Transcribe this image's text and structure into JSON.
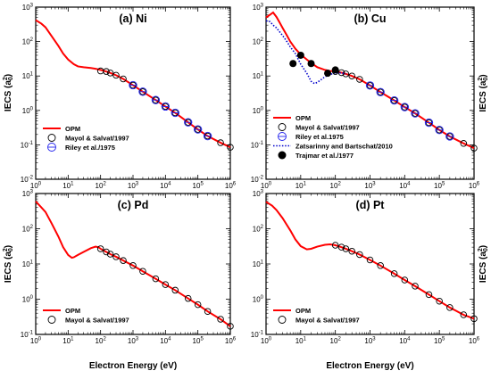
{
  "figure": {
    "xlabel": "Electron Energy (eV)",
    "ylabel_main": "IECS (a",
    "ylabel_sub": "0",
    "ylabel_sup": "2",
    "ylabel_close": ")"
  },
  "colors": {
    "opm": "#ff0000",
    "riley": "#2222ee",
    "zatsarinny": "#0000cc",
    "mayol": "#000000",
    "trajmar": "#000000"
  },
  "chart_data": [
    {
      "type": "line",
      "title": "(a) Ni",
      "xscale": "log",
      "yscale": "log",
      "xlim": [
        1,
        1000000
      ],
      "ylim": [
        0.01,
        1000
      ],
      "xlabel": "",
      "ylabel": "IECS (a02)",
      "legend_position": "bottom-left",
      "series": [
        {
          "name": "OPM",
          "style": "line",
          "color": "#ff0000",
          "x": [
            1,
            1.5,
            2,
            3,
            5,
            7,
            10,
            15,
            20,
            30,
            50,
            70,
            100,
            150,
            200,
            300,
            500,
            1000,
            2000,
            5000,
            10000,
            20000,
            50000,
            100000,
            200000,
            500000,
            1000000
          ],
          "y": [
            420,
            330,
            260,
            150,
            75,
            45,
            30,
            22,
            19,
            18,
            17,
            16.2,
            15,
            13.5,
            12.2,
            10.5,
            8.2,
            5.4,
            3.5,
            2.0,
            1.3,
            0.85,
            0.45,
            0.28,
            0.18,
            0.115,
            0.085
          ]
        },
        {
          "name": "Mayol & Salvat/1997",
          "style": "open-circle",
          "x": [
            100,
            150,
            200,
            300,
            500,
            1000,
            2000,
            5000,
            10000,
            20000,
            50000,
            100000,
            200000,
            500000,
            1000000
          ],
          "y": [
            14,
            13.5,
            12.2,
            10.5,
            8.2,
            5.4,
            3.5,
            2.0,
            1.3,
            0.85,
            0.45,
            0.28,
            0.18,
            0.115,
            0.085
          ]
        },
        {
          "name": "Riley et al./1975",
          "style": "circle-bar",
          "x": [
            1000,
            2000,
            5000,
            10000,
            20000,
            50000,
            100000,
            200000
          ],
          "y": [
            5.4,
            3.5,
            2.0,
            1.3,
            0.85,
            0.45,
            0.28,
            0.18
          ]
        }
      ]
    },
    {
      "type": "line",
      "title": "(b) Cu",
      "xscale": "log",
      "yscale": "log",
      "xlim": [
        1,
        1000000
      ],
      "ylim": [
        0.01,
        1000
      ],
      "xlabel": "",
      "ylabel": "IECS (a02)",
      "legend_position": "bottom-left",
      "series": [
        {
          "name": "OPM",
          "style": "line",
          "color": "#ff0000",
          "x": [
            1,
            1.3,
            1.6,
            2,
            2.5,
            3,
            4,
            5,
            7,
            10,
            15,
            20,
            30,
            50,
            70,
            100,
            150,
            200,
            300,
            500,
            1000,
            2000,
            5000,
            10000,
            20000,
            50000,
            100000,
            200000,
            500000,
            1000000
          ],
          "y": [
            500,
            600,
            700,
            520,
            350,
            250,
            150,
            100,
            62,
            42,
            30,
            24,
            18,
            15,
            14,
            13.5,
            12.5,
            11.5,
            10,
            8,
            5.3,
            3.4,
            1.95,
            1.25,
            0.82,
            0.44,
            0.27,
            0.175,
            0.11,
            0.08
          ]
        },
        {
          "name": "Mayol & Salvat/1997",
          "style": "open-circle",
          "x": [
            100,
            150,
            200,
            300,
            500,
            1000,
            2000,
            5000,
            10000,
            20000,
            50000,
            100000,
            200000,
            500000,
            1000000
          ],
          "y": [
            13.5,
            12.5,
            11.5,
            10,
            8,
            5.3,
            3.4,
            1.95,
            1.25,
            0.82,
            0.44,
            0.27,
            0.175,
            0.11,
            0.08
          ]
        },
        {
          "name": "Riley et al.1975",
          "style": "circle-bar",
          "x": [
            1000,
            2000,
            5000,
            10000,
            20000,
            50000,
            100000,
            200000
          ],
          "y": [
            5.3,
            3.4,
            1.95,
            1.25,
            0.82,
            0.44,
            0.27,
            0.175
          ]
        },
        {
          "name": "Zatsarinny and Bartschat/2010",
          "style": "dotted",
          "color": "#0000cc",
          "x": [
            1,
            1.3,
            1.6,
            2,
            3,
            4,
            5,
            7,
            10,
            15,
            20,
            25,
            30,
            40,
            50,
            70,
            100,
            150,
            200
          ],
          "y": [
            400,
            380,
            300,
            250,
            150,
            100,
            70,
            45,
            22,
            12,
            7,
            6,
            6.5,
            8,
            9.5,
            11,
            12.5,
            12.2,
            11.5
          ]
        },
        {
          "name": "Trajmar et al./1977",
          "style": "filled-circle",
          "x": [
            6,
            10,
            20,
            60,
            100
          ],
          "y": [
            23,
            40,
            23,
            12,
            15
          ]
        }
      ]
    },
    {
      "type": "line",
      "title": "(c) Pd",
      "xscale": "log",
      "yscale": "log",
      "xlim": [
        1,
        1000000
      ],
      "ylim": [
        0.1,
        1000
      ],
      "xlabel": "Electron Energy (eV)",
      "ylabel": "IECS (a02)",
      "legend_position": "bottom-left",
      "series": [
        {
          "name": "OPM",
          "style": "line",
          "color": "#ff0000",
          "x": [
            1,
            1.5,
            2,
            3,
            5,
            7,
            10,
            13,
            15,
            20,
            30,
            50,
            70,
            85,
            100,
            150,
            200,
            300,
            500,
            1000,
            2000,
            5000,
            10000,
            20000,
            50000,
            100000,
            200000,
            500000,
            1000000
          ],
          "y": [
            600,
            400,
            300,
            150,
            60,
            30,
            18,
            15,
            15.5,
            18,
            22,
            28,
            31,
            30,
            27,
            22,
            19,
            16,
            12.5,
            9,
            6.2,
            3.8,
            2.6,
            1.8,
            1.05,
            0.7,
            0.45,
            0.27,
            0.17
          ]
        },
        {
          "name": "Mayol & Salvat/1997",
          "style": "open-circle",
          "x": [
            100,
            150,
            200,
            300,
            500,
            1000,
            2000,
            5000,
            10000,
            20000,
            50000,
            100000,
            200000,
            500000,
            1000000
          ],
          "y": [
            27,
            22,
            19,
            16,
            12.5,
            9,
            6.2,
            3.8,
            2.6,
            1.8,
            1.05,
            0.7,
            0.45,
            0.27,
            0.17
          ]
        }
      ]
    },
    {
      "type": "line",
      "title": "(d) Pt",
      "xscale": "log",
      "yscale": "log",
      "xlim": [
        1,
        1000000
      ],
      "ylim": [
        0.1,
        1000
      ],
      "xlabel": "Electron Energy (eV)",
      "ylabel": "IECS (a02)",
      "legend_position": "bottom-left",
      "series": [
        {
          "name": "OPM",
          "style": "line",
          "color": "#ff0000",
          "x": [
            1,
            1.5,
            2,
            3,
            5,
            7,
            10,
            15,
            20,
            30,
            50,
            70,
            100,
            150,
            200,
            300,
            500,
            1000,
            2000,
            5000,
            10000,
            20000,
            50000,
            100000,
            200000,
            500000,
            1000000
          ],
          "y": [
            580,
            450,
            340,
            200,
            90,
            50,
            32,
            26,
            27,
            31,
            35,
            36,
            34,
            30,
            27,
            23,
            18.5,
            13,
            9,
            5.3,
            3.5,
            2.35,
            1.35,
            0.88,
            0.58,
            0.36,
            0.28
          ]
        },
        {
          "name": "Mayol & Salvat/1997",
          "style": "open-circle",
          "x": [
            100,
            150,
            200,
            300,
            500,
            1000,
            2000,
            5000,
            10000,
            20000,
            50000,
            100000,
            200000,
            500000,
            1000000
          ],
          "y": [
            34,
            30,
            27,
            23,
            18.5,
            13,
            9,
            5.3,
            3.5,
            2.35,
            1.35,
            0.88,
            0.58,
            0.36,
            0.28
          ]
        }
      ]
    }
  ]
}
